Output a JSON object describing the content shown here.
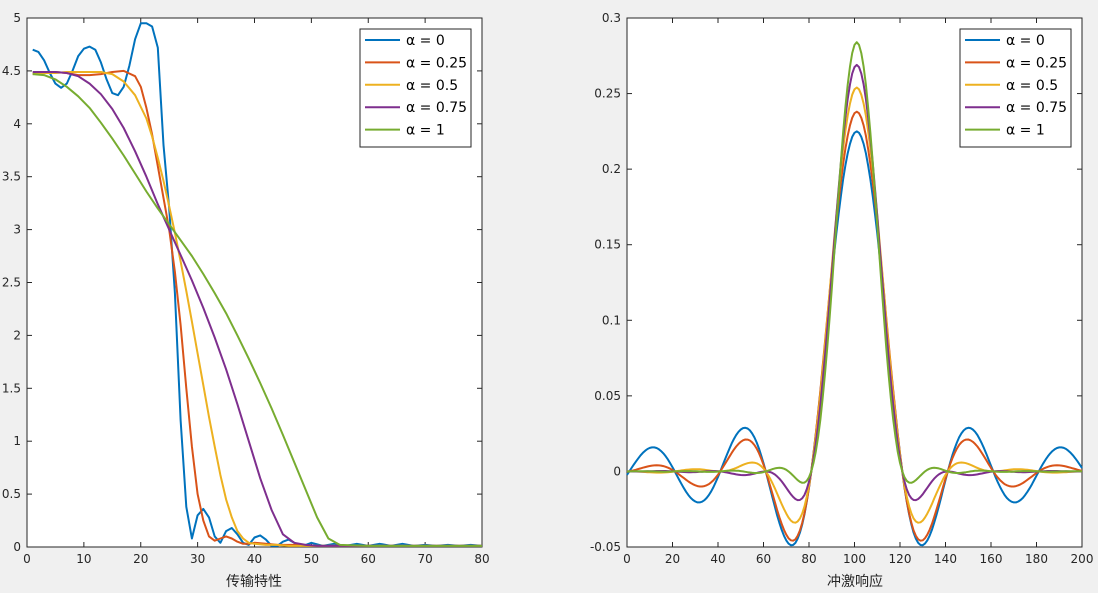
{
  "chart_data": [
    {
      "type": "line",
      "xlabel": "传输特性",
      "ylabel": "",
      "xlim": [
        0,
        80
      ],
      "ylim": [
        0,
        5
      ],
      "xticks": [
        0,
        10,
        20,
        30,
        40,
        50,
        60,
        70,
        80
      ],
      "yticks": [
        0,
        0.5,
        1,
        1.5,
        2,
        2.5,
        3,
        3.5,
        4,
        4.5,
        5
      ],
      "grid": false,
      "legend_position": "top-right",
      "series": [
        {
          "name": "α = 0",
          "color": "#0072BD",
          "x": [
            1,
            2,
            3,
            4,
            5,
            6,
            7,
            8,
            9,
            10,
            11,
            12,
            13,
            14,
            15,
            16,
            17,
            18,
            19,
            20,
            21,
            22,
            23,
            24,
            25,
            26,
            27,
            28,
            29,
            30,
            31,
            32,
            33,
            34,
            35,
            36,
            37,
            38,
            39,
            40,
            41,
            42,
            43,
            44,
            45,
            46,
            47,
            48,
            49,
            50,
            52,
            54,
            56,
            58,
            60,
            62,
            64,
            66,
            68,
            70,
            72,
            74,
            76,
            78,
            80
          ],
          "y": [
            4.7,
            4.68,
            4.6,
            4.48,
            4.38,
            4.34,
            4.38,
            4.5,
            4.64,
            4.71,
            4.73,
            4.7,
            4.58,
            4.42,
            4.29,
            4.27,
            4.35,
            4.55,
            4.8,
            4.95,
            4.95,
            4.92,
            4.72,
            3.8,
            3.2,
            2.4,
            1.2,
            0.38,
            0.08,
            0.3,
            0.36,
            0.28,
            0.1,
            0.04,
            0.15,
            0.18,
            0.12,
            0.04,
            0.02,
            0.09,
            0.11,
            0.07,
            0.01,
            0.01,
            0.05,
            0.07,
            0.04,
            0.01,
            0.02,
            0.04,
            0.01,
            0.03,
            0.01,
            0.03,
            0.01,
            0.03,
            0.01,
            0.03,
            0.01,
            0.02,
            0.01,
            0.02,
            0.01,
            0.02,
            0.01
          ]
        },
        {
          "name": "α = 0.25",
          "color": "#D95319",
          "x": [
            1,
            3,
            5,
            7,
            9,
            11,
            13,
            15,
            17,
            19,
            20,
            21,
            22,
            23,
            24,
            25,
            26,
            27,
            28,
            29,
            30,
            31,
            32,
            33,
            34,
            35,
            36,
            37,
            38,
            39,
            40,
            42,
            44,
            46,
            48,
            50,
            55,
            60,
            65,
            70,
            75,
            80
          ],
          "y": [
            4.47,
            4.48,
            4.49,
            4.48,
            4.46,
            4.46,
            4.47,
            4.49,
            4.5,
            4.45,
            4.35,
            4.15,
            3.9,
            3.6,
            3.3,
            3.0,
            2.6,
            2.1,
            1.5,
            0.95,
            0.5,
            0.25,
            0.1,
            0.06,
            0.08,
            0.1,
            0.08,
            0.05,
            0.03,
            0.03,
            0.04,
            0.03,
            0.02,
            0.02,
            0.02,
            0.01,
            0.01,
            0.01,
            0.01,
            0.01,
            0.01,
            0.01
          ]
        },
        {
          "name": "α = 0.5",
          "color": "#EDB120",
          "x": [
            1,
            3,
            5,
            7,
            9,
            11,
            13,
            15,
            17,
            19,
            21,
            22,
            23,
            24,
            25,
            26,
            27,
            28,
            29,
            30,
            31,
            32,
            33,
            34,
            35,
            36,
            37,
            38,
            39,
            40,
            42,
            44,
            46,
            48,
            50,
            55,
            60,
            65,
            70,
            75,
            80
          ],
          "y": [
            4.48,
            4.48,
            4.48,
            4.49,
            4.49,
            4.49,
            4.49,
            4.47,
            4.4,
            4.27,
            4.05,
            3.88,
            3.68,
            3.46,
            3.22,
            2.97,
            2.7,
            2.42,
            2.13,
            1.83,
            1.53,
            1.23,
            0.95,
            0.68,
            0.45,
            0.28,
            0.15,
            0.08,
            0.04,
            0.03,
            0.02,
            0.02,
            0.01,
            0.01,
            0.01,
            0.01,
            0.01,
            0.01,
            0.01,
            0.01,
            0.01
          ]
        },
        {
          "name": "α = 0.75",
          "color": "#7E2F8E",
          "x": [
            1,
            3,
            5,
            7,
            9,
            11,
            13,
            15,
            17,
            19,
            21,
            23,
            25,
            27,
            29,
            31,
            33,
            35,
            37,
            39,
            41,
            43,
            45,
            47,
            49,
            51,
            55,
            60,
            65,
            70,
            75,
            80
          ],
          "y": [
            4.49,
            4.49,
            4.49,
            4.48,
            4.45,
            4.38,
            4.28,
            4.14,
            3.96,
            3.74,
            3.5,
            3.24,
            3.0,
            2.76,
            2.52,
            2.26,
            1.98,
            1.68,
            1.35,
            1.0,
            0.65,
            0.35,
            0.12,
            0.04,
            0.02,
            0.01,
            0.01,
            0.01,
            0.01,
            0.01,
            0.01,
            0.01
          ]
        },
        {
          "name": "α = 1",
          "color": "#77AC30",
          "x": [
            1,
            3,
            5,
            7,
            9,
            11,
            13,
            15,
            17,
            19,
            21,
            23,
            25,
            27,
            29,
            31,
            33,
            35,
            37,
            39,
            41,
            43,
            45,
            47,
            49,
            51,
            53,
            55,
            60,
            65,
            70,
            75,
            80
          ],
          "y": [
            4.47,
            4.46,
            4.42,
            4.35,
            4.26,
            4.15,
            4.01,
            3.86,
            3.7,
            3.53,
            3.36,
            3.2,
            3.05,
            2.9,
            2.75,
            2.58,
            2.4,
            2.21,
            2.0,
            1.78,
            1.55,
            1.31,
            1.06,
            0.8,
            0.54,
            0.28,
            0.08,
            0.02,
            0.01,
            0.01,
            0.01,
            0.01,
            0.01
          ]
        }
      ]
    },
    {
      "type": "line",
      "xlabel": "冲激响应",
      "ylabel": "",
      "xlim": [
        0,
        200
      ],
      "ylim": [
        -0.05,
        0.3
      ],
      "xticks": [
        0,
        20,
        40,
        60,
        80,
        100,
        120,
        140,
        160,
        180,
        200
      ],
      "yticks": [
        -0.05,
        0,
        0.05,
        0.1,
        0.15,
        0.2,
        0.25,
        0.3
      ],
      "grid": false,
      "legend_position": "top-right",
      "series": [
        {
          "name": "α = 0",
          "color": "#0072BD",
          "amplitude": 0.225,
          "alpha": 0
        },
        {
          "name": "α = 0.25",
          "color": "#D95319",
          "amplitude": 0.238,
          "alpha": 0.25
        },
        {
          "name": "α = 0.5",
          "color": "#EDB120",
          "amplitude": 0.254,
          "alpha": 0.5
        },
        {
          "name": "α = 0.75",
          "color": "#7E2F8E",
          "amplitude": 0.269,
          "alpha": 0.75
        },
        {
          "name": "α = 1",
          "color": "#77AC30",
          "amplitude": 0.284,
          "alpha": 1
        }
      ]
    }
  ]
}
